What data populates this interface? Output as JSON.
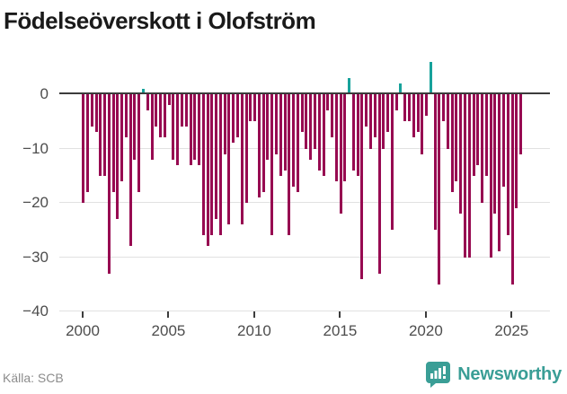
{
  "title": "Födelseöverskott i Olofström",
  "footer": {
    "source": "Källa: SCB",
    "brand": "Newsworthy"
  },
  "colors": {
    "bar_negative": "#970a51",
    "bar_positive": "#17a29b",
    "zero_line": "#3c3c3c",
    "gridline": "#e1e1e1",
    "axis_text": "#4d4d4d",
    "source_text": "#8c8c8c",
    "brand_teal": "#3a9e96"
  },
  "chart_data": {
    "type": "bar",
    "title": "Födelseöverskott i Olofström",
    "xlabel": "",
    "ylabel": "",
    "frequency": "quarterly",
    "start": {
      "year": 2000,
      "quarter": 1
    },
    "end": {
      "year": 2025,
      "quarter": 3
    },
    "values": [
      -20,
      -18,
      -6,
      -7,
      -15,
      -15,
      -33,
      -18,
      -23,
      -16,
      -8,
      -28,
      -12,
      -18,
      1,
      -3,
      -12,
      -6,
      -8,
      -8,
      -2,
      -12,
      -13,
      -6,
      -6,
      -13,
      -12,
      -13,
      -26,
      -28,
      -26,
      -23,
      -26,
      -11,
      -24,
      -9,
      -8,
      -24,
      -20,
      -5,
      -5,
      -19,
      -18,
      -12,
      -26,
      -11,
      -15,
      -14,
      -26,
      -17,
      -18,
      -7,
      -10,
      -12,
      -10,
      -14,
      -15,
      -3,
      -8,
      -16,
      -22,
      -16,
      3,
      -14,
      -15,
      -34,
      -6,
      -10,
      -8,
      -33,
      -10,
      -7,
      -25,
      -3,
      2,
      -5,
      -5,
      -8,
      -7,
      -11,
      -4,
      6,
      -25,
      -35,
      -5,
      -10,
      -18,
      -16,
      -22,
      -30,
      -30,
      -15,
      -13,
      -20,
      -15,
      -30,
      -22,
      -29,
      -17,
      -26,
      -35,
      -21,
      -11
    ],
    "yticks": [
      0,
      -10,
      -20,
      -30,
      -40
    ],
    "xticks": [
      2000,
      2005,
      2010,
      2015,
      2020,
      2025
    ],
    "ylim": [
      -40,
      7
    ],
    "grid": "horizontal",
    "legend": "none"
  }
}
